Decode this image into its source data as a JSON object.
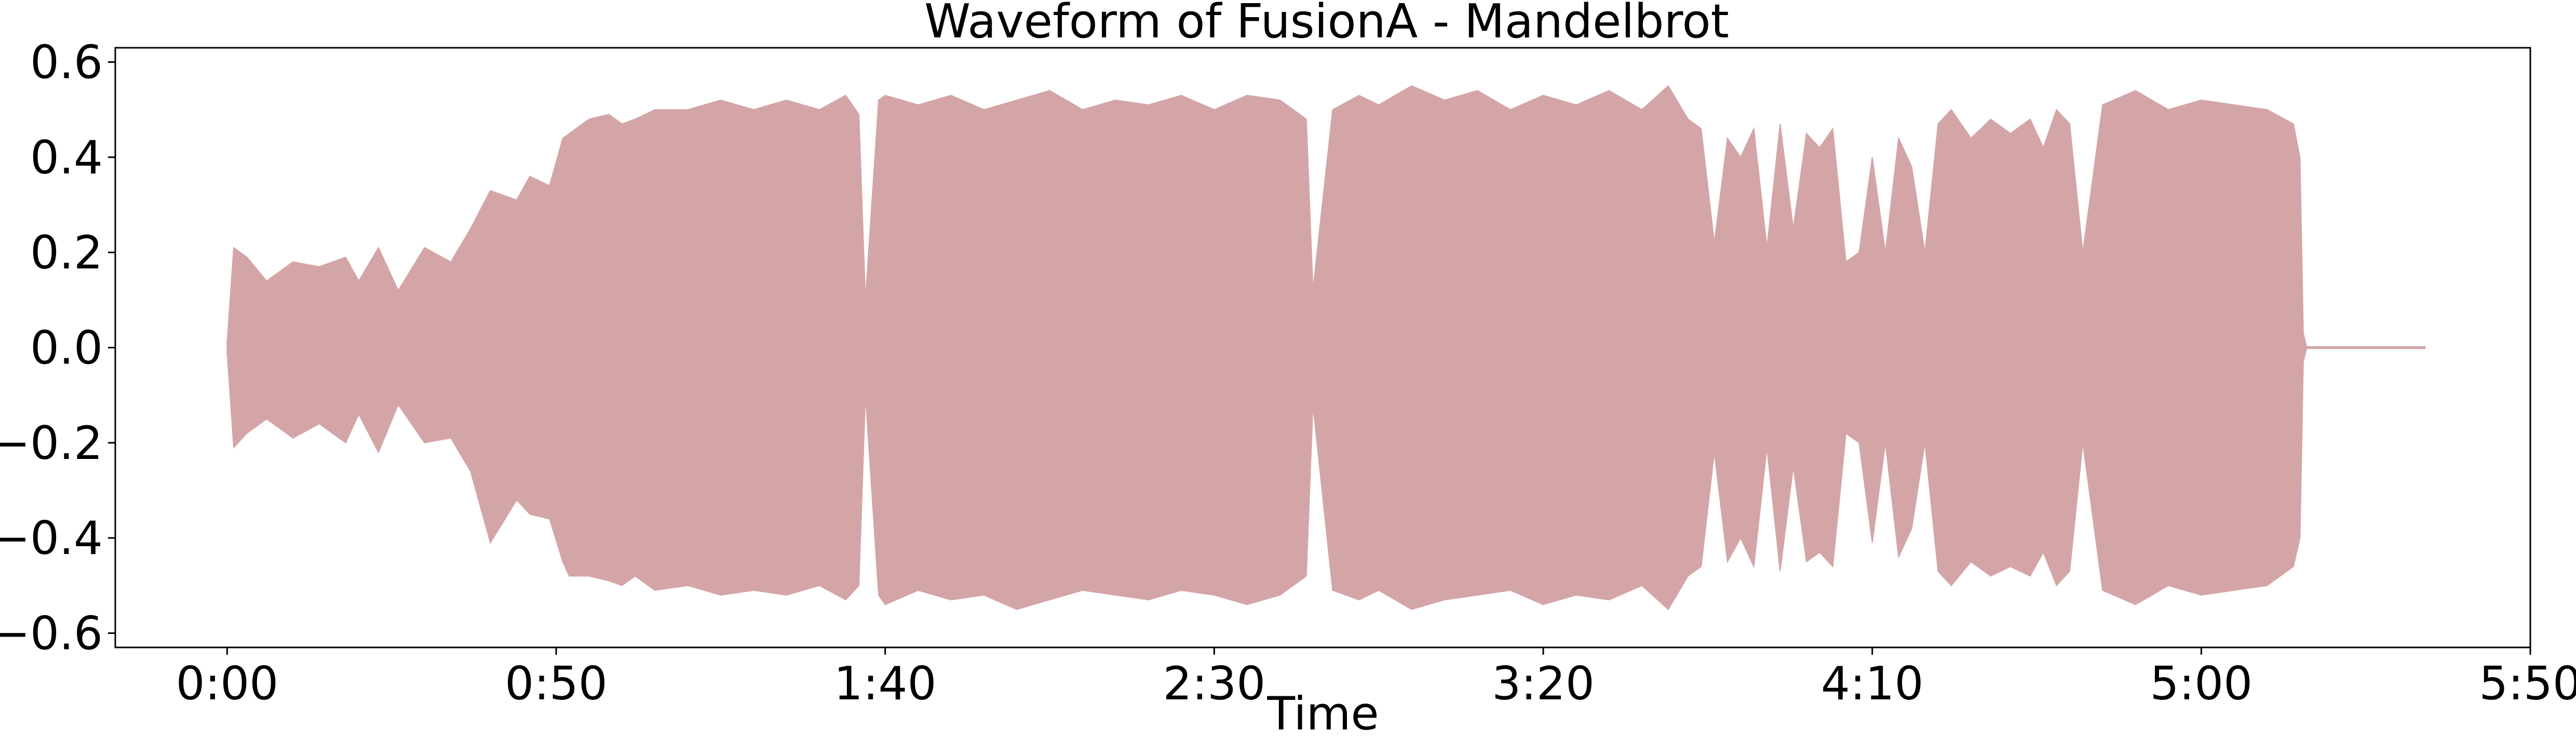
{
  "chart_data": {
    "type": "area",
    "title": "Waveform of FusionA - Mandelbrot",
    "xlabel": "Time",
    "ylabel": "",
    "xlim_seconds": [
      -17,
      350
    ],
    "ylim": [
      -0.63,
      0.63
    ],
    "grid": false,
    "fill_color": "#d4a5a7",
    "x_ticks": [
      {
        "value": 0,
        "label": "0:00"
      },
      {
        "value": 50,
        "label": "0:50"
      },
      {
        "value": 100,
        "label": "1:40"
      },
      {
        "value": 150,
        "label": "2:30"
      },
      {
        "value": 200,
        "label": "3:20"
      },
      {
        "value": 250,
        "label": "4:10"
      },
      {
        "value": 300,
        "label": "5:00"
      },
      {
        "value": 350,
        "label": "5:50"
      }
    ],
    "y_ticks": [
      {
        "value": 0.6,
        "label": "0.6"
      },
      {
        "value": 0.4,
        "label": "0.4"
      },
      {
        "value": 0.2,
        "label": "0.2"
      },
      {
        "value": 0.0,
        "label": "0.0"
      },
      {
        "value": -0.2,
        "label": "−0.2"
      },
      {
        "value": -0.4,
        "label": "−0.4"
      },
      {
        "value": -0.6,
        "label": "−0.6"
      }
    ],
    "series": [
      {
        "x": [
          0,
          1,
          3,
          6,
          10,
          14,
          18,
          20,
          23,
          26,
          30,
          34,
          37,
          40,
          44,
          46,
          49,
          51,
          52,
          55,
          58,
          60,
          62,
          65,
          70,
          75,
          80,
          85,
          90,
          94,
          96,
          97,
          99,
          100,
          105,
          110,
          115,
          120,
          125,
          130,
          135,
          140,
          145,
          150,
          155,
          160,
          164,
          165,
          168,
          172,
          175,
          180,
          185,
          190,
          195,
          200,
          205,
          210,
          215,
          219,
          222,
          224,
          226,
          228,
          230,
          232,
          234,
          236,
          238,
          240,
          242,
          244,
          246,
          248,
          250,
          252,
          254,
          256,
          258,
          260,
          262,
          265,
          268,
          271,
          274,
          276,
          278,
          280,
          282,
          285,
          290,
          295,
          300,
          305,
          310,
          314,
          315,
          315.5,
          316,
          330,
          334
        ],
        "upper": [
          0.01,
          0.21,
          0.19,
          0.14,
          0.18,
          0.17,
          0.19,
          0.14,
          0.21,
          0.12,
          0.21,
          0.18,
          0.25,
          0.33,
          0.31,
          0.36,
          0.34,
          0.44,
          0.45,
          0.48,
          0.49,
          0.47,
          0.48,
          0.5,
          0.5,
          0.52,
          0.5,
          0.52,
          0.5,
          0.53,
          0.49,
          0.1,
          0.52,
          0.53,
          0.51,
          0.53,
          0.5,
          0.52,
          0.54,
          0.5,
          0.52,
          0.51,
          0.53,
          0.5,
          0.53,
          0.52,
          0.48,
          0.12,
          0.5,
          0.53,
          0.51,
          0.55,
          0.52,
          0.54,
          0.5,
          0.53,
          0.51,
          0.54,
          0.5,
          0.55,
          0.48,
          0.46,
          0.22,
          0.44,
          0.4,
          0.46,
          0.21,
          0.47,
          0.25,
          0.45,
          0.42,
          0.46,
          0.18,
          0.2,
          0.4,
          0.2,
          0.44,
          0.38,
          0.2,
          0.47,
          0.5,
          0.44,
          0.48,
          0.45,
          0.48,
          0.42,
          0.5,
          0.47,
          0.2,
          0.51,
          0.54,
          0.5,
          0.52,
          0.51,
          0.5,
          0.47,
          0.4,
          0.03,
          0.002,
          0.002,
          0.002
        ],
        "lower": [
          -0.01,
          -0.21,
          -0.18,
          -0.15,
          -0.19,
          -0.16,
          -0.2,
          -0.14,
          -0.22,
          -0.12,
          -0.2,
          -0.19,
          -0.26,
          -0.41,
          -0.32,
          -0.35,
          -0.36,
          -0.45,
          -0.48,
          -0.48,
          -0.49,
          -0.5,
          -0.48,
          -0.51,
          -0.5,
          -0.52,
          -0.51,
          -0.52,
          -0.5,
          -0.53,
          -0.5,
          -0.1,
          -0.52,
          -0.54,
          -0.51,
          -0.53,
          -0.52,
          -0.55,
          -0.53,
          -0.51,
          -0.52,
          -0.53,
          -0.51,
          -0.52,
          -0.54,
          -0.52,
          -0.48,
          -0.12,
          -0.51,
          -0.53,
          -0.51,
          -0.55,
          -0.53,
          -0.52,
          -0.51,
          -0.54,
          -0.52,
          -0.53,
          -0.5,
          -0.55,
          -0.48,
          -0.46,
          -0.22,
          -0.45,
          -0.4,
          -0.46,
          -0.21,
          -0.47,
          -0.25,
          -0.45,
          -0.43,
          -0.46,
          -0.18,
          -0.2,
          -0.41,
          -0.2,
          -0.44,
          -0.38,
          -0.2,
          -0.47,
          -0.5,
          -0.45,
          -0.48,
          -0.46,
          -0.48,
          -0.43,
          -0.5,
          -0.47,
          -0.2,
          -0.51,
          -0.54,
          -0.5,
          -0.52,
          -0.51,
          -0.5,
          -0.46,
          -0.4,
          -0.03,
          -0.002,
          -0.002,
          -0.002
        ]
      }
    ]
  }
}
